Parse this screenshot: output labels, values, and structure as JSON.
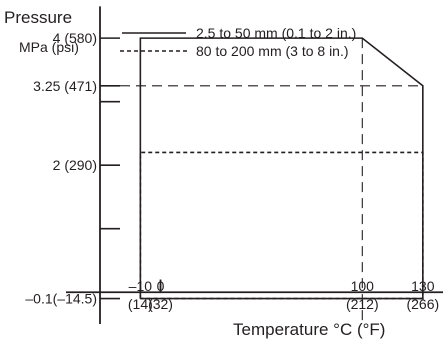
{
  "chart_data": {
    "type": "line",
    "ylabel_line1": "Pressure",
    "ylabel_line2": "MPa (psi)",
    "xlabel": "Temperature °C (°F)",
    "xlim": [
      -30,
      140
    ],
    "ylim": [
      -0.5,
      4.6
    ],
    "y_ticks": [
      {
        "value": 4,
        "label": "4 (580)"
      },
      {
        "value": 3.25,
        "label": "3.25 (471)"
      },
      {
        "value": 2,
        "label": "2 (290)"
      },
      {
        "value": -0.1,
        "label": "–0.1(–14.5)"
      }
    ],
    "y_minor_ticks": [
      3,
      1
    ],
    "x_ticks": [
      {
        "value": -10,
        "label1": "–10",
        "label2": "(14)"
      },
      {
        "value": 0,
        "label1": "0",
        "label2": "(32)"
      },
      {
        "value": 100,
        "label1": "100",
        "label2": "(212)"
      },
      {
        "value": 130,
        "label1": "130",
        "label2": "(266)"
      }
    ],
    "series": [
      {
        "name": "2.5 to 50 mm (0.1 to 2 in.)",
        "style": "solid",
        "x": [
          -10,
          -10,
          100,
          130,
          130,
          -10
        ],
        "y": [
          -0.1,
          4,
          4,
          3.25,
          -0.1,
          -0.1
        ]
      },
      {
        "name": "80 to 200 mm (3 to 8 in.)",
        "style": "dashed",
        "x": [
          -10,
          -10,
          130,
          130,
          -10
        ],
        "y": [
          -0.1,
          2.2,
          2.2,
          -0.1,
          -0.1
        ]
      }
    ],
    "reference_lines": [
      {
        "axis": "y",
        "value": 3.25,
        "style": "dashed"
      },
      {
        "axis": "x",
        "value": 100,
        "style": "dashed"
      }
    ],
    "legend_position": "top"
  }
}
